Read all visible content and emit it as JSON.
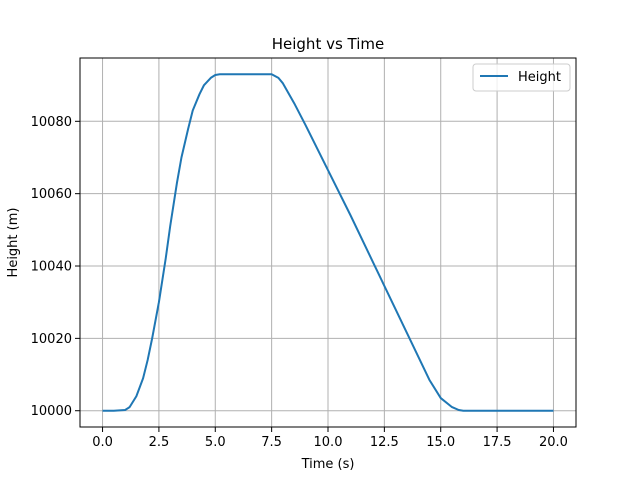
{
  "chart_data": {
    "type": "line",
    "title": "Height vs Time",
    "xlabel": "Time (s)",
    "ylabel": "Height (m)",
    "xlim": [
      -1.0,
      21.0
    ],
    "ylim": [
      9995.5,
      10097.5
    ],
    "xticks": [
      0.0,
      2.5,
      5.0,
      7.5,
      10.0,
      12.5,
      15.0,
      17.5,
      20.0
    ],
    "xtick_labels": [
      "0.0",
      "2.5",
      "5.0",
      "7.5",
      "10.0",
      "12.5",
      "15.0",
      "17.5",
      "20.0"
    ],
    "yticks": [
      10000,
      10020,
      10040,
      10060,
      10080
    ],
    "ytick_labels": [
      "10000",
      "10020",
      "10040",
      "10060",
      "10080"
    ],
    "grid": true,
    "legend": "top-right",
    "series": [
      {
        "name": "Height",
        "color": "#1f77b4",
        "x": [
          0.0,
          0.5,
          1.0,
          1.2,
          1.5,
          1.8,
          2.0,
          2.2,
          2.5,
          2.8,
          3.0,
          3.3,
          3.5,
          3.8,
          4.0,
          4.3,
          4.5,
          4.8,
          5.0,
          5.2,
          5.5,
          6.0,
          6.5,
          7.0,
          7.5,
          7.8,
          8.0,
          8.5,
          9.0,
          10.0,
          11.0,
          12.0,
          13.0,
          14.0,
          14.5,
          15.0,
          15.5,
          15.8,
          16.0,
          17.0,
          18.0,
          19.0,
          20.0
        ],
        "y": [
          10000,
          10000,
          10000.2,
          10001,
          10004,
          10009,
          10014,
          10020,
          10030,
          10042,
          10051,
          10063,
          10070,
          10078,
          10083,
          10087.5,
          10090,
          10092,
          10092.8,
          10093,
          10093,
          10093,
          10093,
          10093,
          10093,
          10092,
          10090.5,
          10085,
          10079,
          10066.5,
          10054,
          10041,
          10028,
          10015,
          10008.5,
          10003.5,
          10001,
          10000.2,
          10000,
          10000,
          10000,
          10000,
          10000
        ]
      }
    ]
  }
}
